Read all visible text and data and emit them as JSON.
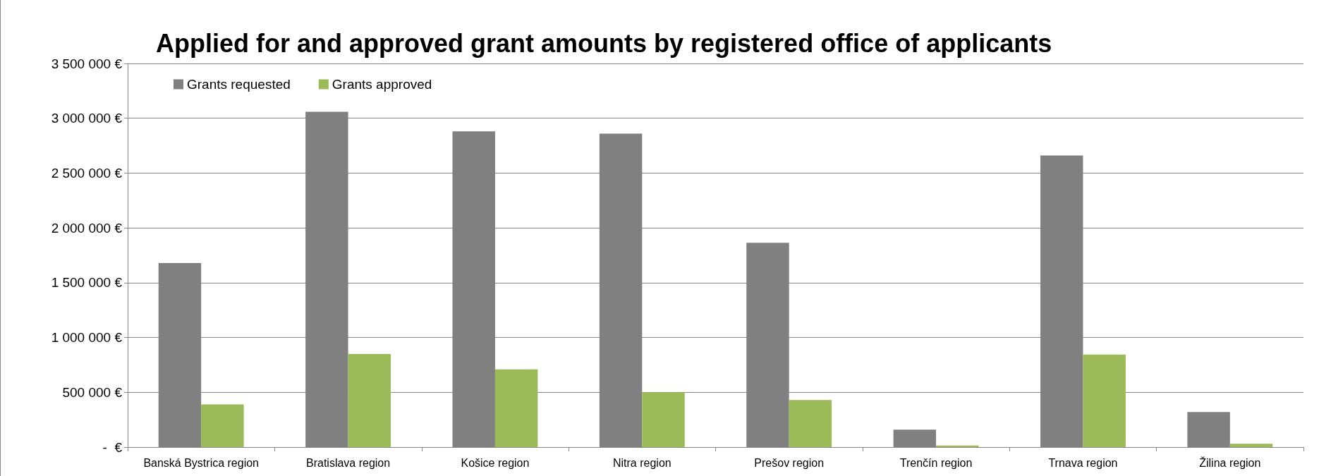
{
  "chart_data": {
    "type": "bar",
    "title": "Applied for and approved grant amounts by registered office of applicants",
    "categories": [
      "Banská Bystrica region",
      "Bratislava region",
      "Košice region",
      "Nitra region",
      "Prešov region",
      "Trenčín region",
      "Trnava region",
      "Žilina region"
    ],
    "series": [
      {
        "name": "Grants requested",
        "color": "#808080",
        "values": [
          1680000,
          3060000,
          2880000,
          2860000,
          1865000,
          160000,
          2660000,
          320000
        ]
      },
      {
        "name": "Grants approved",
        "color": "#9bbb59",
        "values": [
          390000,
          850000,
          710000,
          500000,
          430000,
          15000,
          845000,
          30000
        ]
      }
    ],
    "ylim": [
      0,
      3500000
    ],
    "yticks": [
      {
        "value": 0,
        "label": "-  €"
      },
      {
        "value": 500000,
        "label": "500 000 €"
      },
      {
        "value": 1000000,
        "label": "1 000 000 €"
      },
      {
        "value": 1500000,
        "label": "1 500 000 €"
      },
      {
        "value": 2000000,
        "label": "2 000 000 €"
      },
      {
        "value": 2500000,
        "label": "2 500 000 €"
      },
      {
        "value": 3000000,
        "label": "3 000 000 €"
      },
      {
        "value": 3500000,
        "label": "3 500 000 €"
      }
    ],
    "grid": "y",
    "legend": "top left"
  }
}
